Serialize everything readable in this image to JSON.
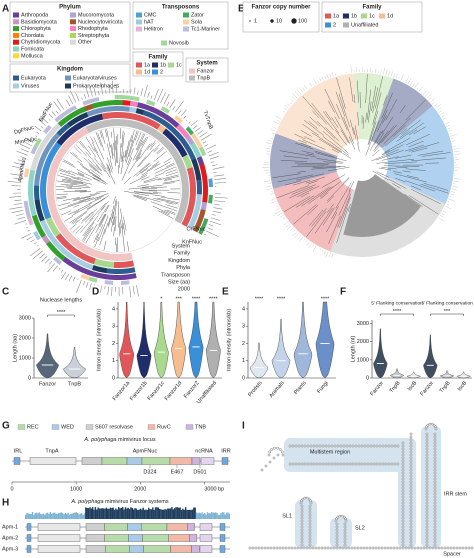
{
  "panel_labels": [
    "A",
    "B",
    "C",
    "D",
    "E",
    "F",
    "G",
    "H",
    "I"
  ],
  "panel_a": {
    "phylum": {
      "title": "Phylum",
      "items": [
        "Arthropoda",
        "Basidiomycota",
        "Chlorophyta",
        "Chordata",
        "Chytridiomycota",
        "Fornicata",
        "Mollusca",
        "Mucoromycota",
        "Nucleocytoviricota",
        "Rhodophyta",
        "Streptophyta",
        "Other"
      ],
      "colors": [
        "#6a3d9a",
        "#c994c7",
        "#33a02c",
        "#ff7f00",
        "#e31a1c",
        "#8dd3c7",
        "#ffd92f",
        "#b3a2d6",
        "#a65628",
        "#f781bf",
        "#a6d854",
        "#d9d9d9"
      ]
    },
    "kingdom": {
      "title": "Kingdom",
      "items": [
        "Eukaryota",
        "Viruses",
        "Eukaryota/viruses",
        "Prokaryote/phages"
      ],
      "colors": [
        "#2c5d8f",
        "#a6cee3",
        "#6f95bf",
        "#1b3a5c"
      ]
    },
    "transposons": {
      "title": "Transposons",
      "items": [
        "CMC",
        "hAT",
        "Helitron",
        "Zator",
        "Sola",
        "Tc1-Mariner",
        "Novosib"
      ],
      "colors": [
        "#4f9fd1",
        "#9ecae1",
        "#e3b4d8",
        "#41ab5d",
        "#fdd0a2",
        "#bcbddc",
        "#a1d99b"
      ]
    },
    "family": {
      "title": "Family",
      "items": [
        "1a",
        "1b",
        "1c",
        "1d",
        "2"
      ],
      "colors": [
        "#e15759",
        "#1f2e6b",
        "#a9d98f",
        "#f6bd8f",
        "#3a8fd9"
      ]
    },
    "system": {
      "title": "System",
      "items": [
        "Fanzor",
        "TnpB"
      ],
      "colors": [
        "#f2c4c4",
        "#bdbdbd"
      ]
    },
    "tree_labels": [
      "DpFNuc",
      "MmFNuc",
      "BatFNuc",
      "ApmFNuc",
      "TvTnpB",
      "CrFNuc",
      "KnFNuc"
    ],
    "ring_labels": [
      "System",
      "Family",
      "Kingdom",
      "Phyla",
      "Transposon",
      "Size (aa)"
    ],
    "size_tick": 2000
  },
  "panel_b": {
    "copy_number": {
      "title": "Fanzor copy number",
      "sizes": [
        1,
        10,
        100
      ]
    },
    "family": {
      "title": "Family",
      "items": [
        "1a",
        "1b",
        "1c",
        "1d",
        "2",
        "Unaffiliated"
      ],
      "colors": [
        "#e15759",
        "#1f2e6b",
        "#a9d98f",
        "#f6bd8f",
        "#3a8fd9",
        "#b0b0b0"
      ]
    }
  },
  "chart_data": [
    {
      "type": "violin",
      "title": "Nuclease lengths",
      "y_label": "Length (aa)",
      "categories": [
        "Fanzor",
        "TnpB"
      ],
      "values": [
        650,
        450
      ],
      "colors": [
        "#56677a",
        "#c9d0d8"
      ],
      "ylim": [
        0,
        3000
      ],
      "yticks": [
        0,
        1000,
        2000,
        3000
      ],
      "significance": "****"
    },
    {
      "type": "violin",
      "y_label": "Intron density (introns/kb)",
      "categories": [
        "Fanzor1a",
        "Fanzor1b",
        "Fanzor1c",
        "Fanzor1d",
        "Fanzor2",
        "Unaffiliated"
      ],
      "values": [
        1.4,
        1.3,
        1.5,
        1.7,
        1.8,
        1.6
      ],
      "colors": [
        "#e15759",
        "#1f2e6b",
        "#a9d98f",
        "#f6bd8f",
        "#3a8fd9",
        "#b0b0b0"
      ],
      "ylim": [
        0,
        4.4
      ],
      "yticks": [
        0,
        1,
        2,
        3,
        4
      ],
      "significance": [
        null,
        null,
        "*",
        "***",
        "****",
        "****"
      ]
    },
    {
      "type": "violin",
      "y_label": "Intron density (introns/kb)",
      "categories": [
        "Protists",
        "Animals",
        "Plants",
        "Fungi"
      ],
      "values": [
        0.6,
        1.0,
        1.4,
        2.0
      ],
      "colors": [
        "#dfe7f0",
        "#c3d3ea",
        "#9fb7da",
        "#6b8fc9"
      ],
      "ylim": [
        0,
        4.4
      ],
      "yticks": [
        0,
        1,
        2,
        3,
        4
      ],
      "significance": [
        "****",
        "****",
        null,
        "****"
      ]
    },
    {
      "type": "violin",
      "y_label": "Length (nt)",
      "categories": [
        "Fanzor",
        "TnpB",
        "IscB",
        "Fanzor",
        "TnpB",
        "IscB"
      ],
      "values": [
        800,
        150,
        100,
        700,
        120,
        100
      ],
      "colors": [
        "#3f4f5f",
        "#c0c6cc",
        "#e6e6e6",
        "#3f4f5f",
        "#c0c6cc",
        "#e6e6e6"
      ],
      "ylim": [
        0,
        3200
      ],
      "yticks": [
        0,
        1000,
        2000,
        3000
      ],
      "groups": [
        {
          "title": "5' Flanking conservation",
          "significance": "****"
        },
        {
          "title": "3' Flanking conservation",
          "significance": "***"
        }
      ]
    }
  ],
  "panel_g": {
    "title_species": "A. polyphaga",
    "title_rest": "mimivirus locus",
    "domains": [
      "REC",
      "WED",
      "S607 resolvase",
      "RuvC",
      "TNB"
    ],
    "domain_colors": [
      "#b7dca9",
      "#a9cbe8",
      "#cfcfcf",
      "#f2b8a8",
      "#cfb4e0"
    ],
    "genes": [
      "IRL",
      "TnpA",
      "ApmFNuc",
      "ncRNA",
      "IRR"
    ],
    "residues": [
      "D324",
      "E467",
      "D501"
    ],
    "xlim": [
      0,
      3400
    ],
    "xticks": [
      0,
      1000,
      2000,
      {
        "value": 3000,
        "label": "3000 bp"
      }
    ]
  },
  "panel_h": {
    "title_species": "A. polyphaga",
    "title_rest": "mimivirus Fanzor systems",
    "rows": [
      "Apm-1",
      "Apm-2",
      "Apm-3"
    ]
  },
  "panel_i": {
    "labels": [
      "Multistem region",
      "IRR stem",
      "SL1",
      "SL2",
      "Spacer"
    ]
  }
}
